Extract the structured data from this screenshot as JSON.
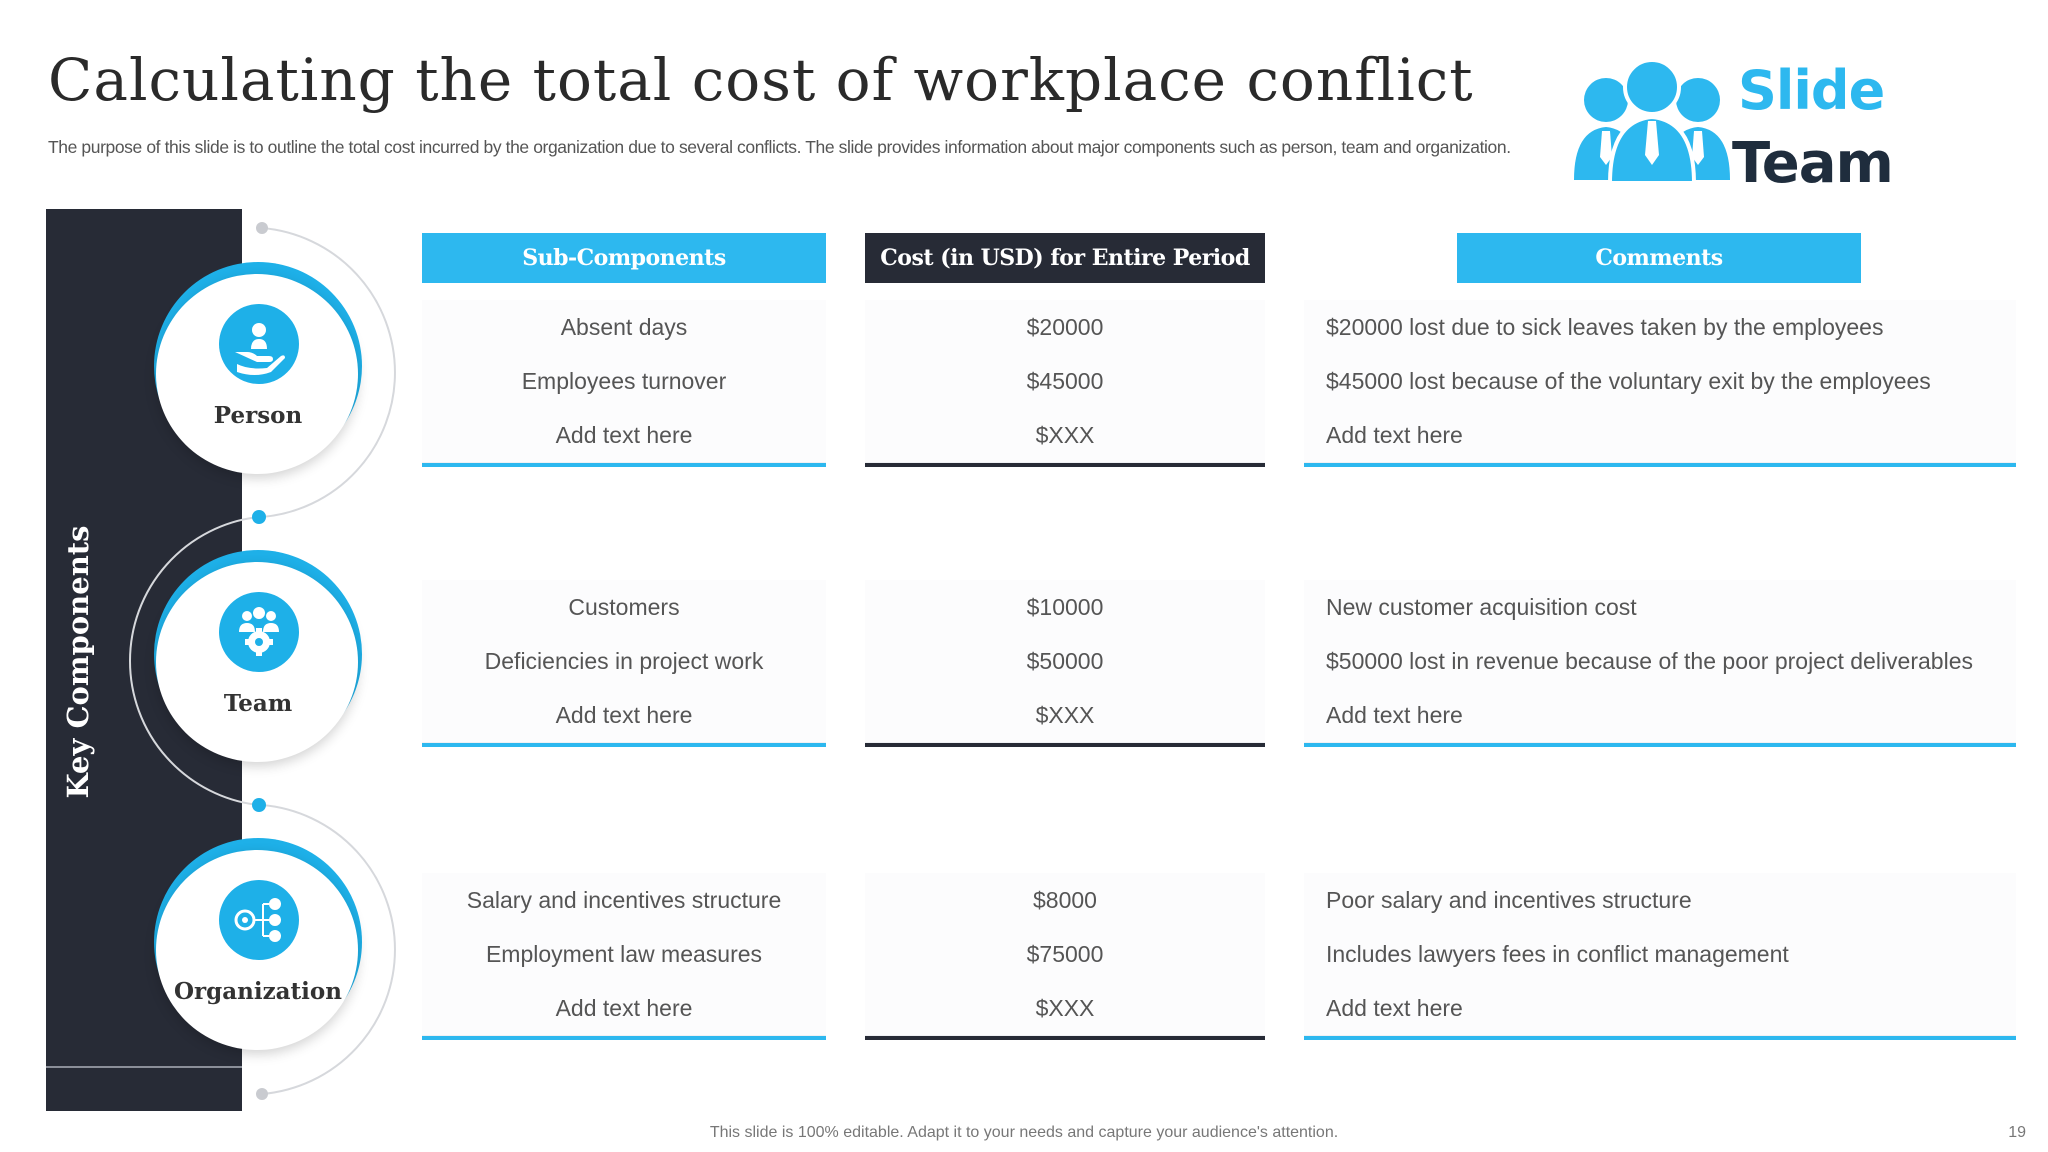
{
  "title": "Calculating the total cost of workplace conflict",
  "subtitle": "The purpose of this slide is to outline the total cost incurred by the organization due to several conflicts. The slide provides information about major components such as person, team and organization.",
  "logo": {
    "line1": "Slide",
    "line2": "Team",
    "icon": "people-group-icon"
  },
  "side_label": "Key Components",
  "colors": {
    "accent": "#2db8ef",
    "dark": "#272b36",
    "icon_blue": "#1eb0e8"
  },
  "headers": {
    "sub_components": "Sub-Components",
    "cost": "Cost (in USD) for Entire Period",
    "comments": "Comments"
  },
  "groups": [
    {
      "name": "Person",
      "icon": "hand-person-icon",
      "rows": [
        {
          "sub": "Absent days",
          "cost": "$20000",
          "comment": "$20000 lost due to sick leaves taken by the employees"
        },
        {
          "sub": "Employees turnover",
          "cost": "$45000",
          "comment": "$45000 lost because of the voluntary exit by the employees"
        },
        {
          "sub": "Add text here",
          "cost": "$XXX",
          "comment": "Add text here"
        }
      ]
    },
    {
      "name": "Team",
      "icon": "team-gear-icon",
      "rows": [
        {
          "sub": "Customers",
          "cost": "$10000",
          "comment": "New customer acquisition cost"
        },
        {
          "sub": "Deficiencies in project work",
          "cost": "$50000",
          "comment": "$50000 lost in revenue because of the poor project deliverables"
        },
        {
          "sub": "Add text here",
          "cost": "$XXX",
          "comment": "Add text here"
        }
      ]
    },
    {
      "name": "Organization",
      "icon": "org-structure-icon",
      "rows": [
        {
          "sub": "Salary and incentives structure",
          "cost": "$8000",
          "comment": "Poor salary and incentives structure"
        },
        {
          "sub": "Employment law measures",
          "cost": "$75000",
          "comment": "Includes lawyers fees in conflict management"
        },
        {
          "sub": "Add text here",
          "cost": "$XXX",
          "comment": "Add text here"
        }
      ]
    }
  ],
  "footer": "This slide is 100% editable. Adapt it to your needs and capture your audience's attention.",
  "page_number": "19"
}
